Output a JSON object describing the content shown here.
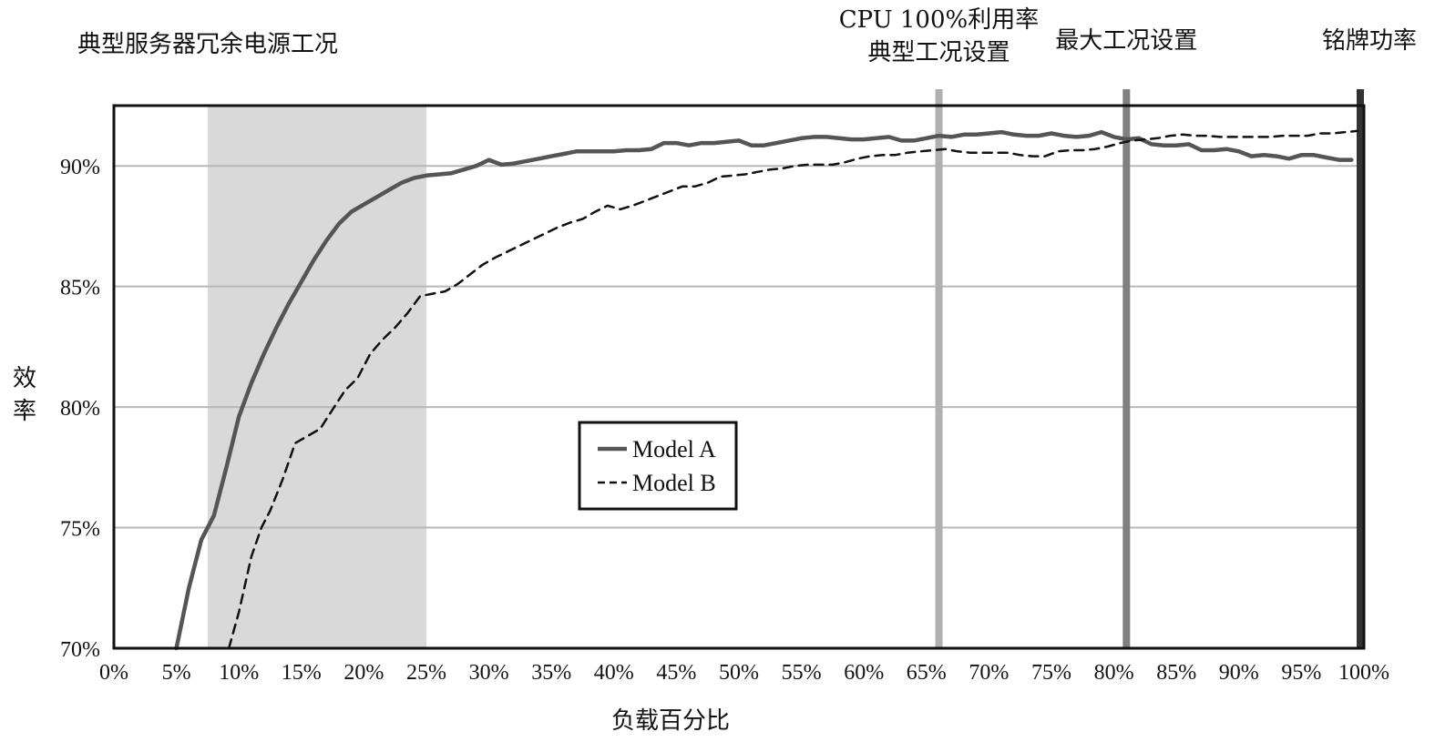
{
  "chart_data": {
    "type": "line",
    "xlabel": "负载百分比",
    "ylabel": "效率",
    "xlim": [
      0,
      100
    ],
    "ylim": [
      70,
      92.5
    ],
    "x_ticks": [
      0,
      5,
      10,
      15,
      20,
      25,
      30,
      35,
      40,
      45,
      50,
      55,
      60,
      65,
      70,
      75,
      80,
      85,
      90,
      95,
      100
    ],
    "x_tick_labels": [
      "0%",
      "5%",
      "10%",
      "15%",
      "20%",
      "25%",
      "30%",
      "35%",
      "40%",
      "45%",
      "50%",
      "55%",
      "60%",
      "65%",
      "70%",
      "75%",
      "80%",
      "85%",
      "90%",
      "95%",
      "100%"
    ],
    "y_ticks": [
      70,
      75,
      80,
      85,
      90
    ],
    "y_tick_labels": [
      "70%",
      "75%",
      "80%",
      "85%",
      "90%"
    ],
    "grid": "horizontal",
    "legend_position": "center",
    "regions": [
      {
        "label": "典型服务器冗余电源工况",
        "x_start": 7.5,
        "x_end": 25,
        "color": "#d9d9d9"
      }
    ],
    "vertical_markers": [
      {
        "label_lines": [
          "CPU 100%利用率",
          "典型工况设置"
        ],
        "x": 66,
        "color": "#b0b0b0"
      },
      {
        "label_lines": [
          "最大工况设置"
        ],
        "x": 81,
        "color": "#808080"
      },
      {
        "label_lines": [
          "铭牌功率"
        ],
        "x": 100,
        "color": "#333333"
      }
    ],
    "series": [
      {
        "name": "Model A",
        "style": "solid",
        "color": "#555555",
        "points": [
          [
            5,
            70
          ],
          [
            6,
            72.5
          ],
          [
            7,
            74.5
          ],
          [
            8,
            75.5
          ],
          [
            9,
            77.5
          ],
          [
            10,
            79.6
          ],
          [
            11,
            81
          ],
          [
            12,
            82.2
          ],
          [
            13,
            83.3
          ],
          [
            14,
            84.3
          ],
          [
            15,
            85.2
          ],
          [
            16,
            86.1
          ],
          [
            17,
            86.9
          ],
          [
            18,
            87.6
          ],
          [
            19,
            88.1
          ],
          [
            20,
            88.4
          ],
          [
            21,
            88.7
          ],
          [
            22,
            89
          ],
          [
            23,
            89.3
          ],
          [
            24,
            89.5
          ],
          [
            25,
            89.6
          ],
          [
            26,
            89.65
          ],
          [
            27,
            89.7
          ],
          [
            28,
            89.85
          ],
          [
            29,
            90
          ],
          [
            30,
            90.25
          ],
          [
            31,
            90.05
          ],
          [
            32,
            90.1
          ],
          [
            33,
            90.2
          ],
          [
            34,
            90.3
          ],
          [
            35,
            90.4
          ],
          [
            36,
            90.5
          ],
          [
            37,
            90.6
          ],
          [
            38,
            90.6
          ],
          [
            39,
            90.6
          ],
          [
            40,
            90.6
          ],
          [
            41,
            90.65
          ],
          [
            42,
            90.65
          ],
          [
            43,
            90.7
          ],
          [
            44,
            90.95
          ],
          [
            45,
            90.95
          ],
          [
            46,
            90.85
          ],
          [
            47,
            90.95
          ],
          [
            48,
            90.95
          ],
          [
            49,
            91
          ],
          [
            50,
            91.05
          ],
          [
            51,
            90.85
          ],
          [
            52,
            90.85
          ],
          [
            53,
            90.95
          ],
          [
            54,
            91.05
          ],
          [
            55,
            91.15
          ],
          [
            56,
            91.2
          ],
          [
            57,
            91.2
          ],
          [
            58,
            91.15
          ],
          [
            59,
            91.1
          ],
          [
            60,
            91.1
          ],
          [
            61,
            91.15
          ],
          [
            62,
            91.2
          ],
          [
            63,
            91.05
          ],
          [
            64,
            91.05
          ],
          [
            65,
            91.15
          ],
          [
            66,
            91.25
          ],
          [
            67,
            91.2
          ],
          [
            68,
            91.3
          ],
          [
            69,
            91.3
          ],
          [
            70,
            91.35
          ],
          [
            71,
            91.4
          ],
          [
            72,
            91.3
          ],
          [
            73,
            91.25
          ],
          [
            74,
            91.25
          ],
          [
            75,
            91.35
          ],
          [
            76,
            91.25
          ],
          [
            77,
            91.2
          ],
          [
            78,
            91.25
          ],
          [
            79,
            91.4
          ],
          [
            80,
            91.2
          ],
          [
            81,
            91.1
          ],
          [
            82,
            91.15
          ],
          [
            83,
            90.9
          ],
          [
            84,
            90.85
          ],
          [
            85,
            90.85
          ],
          [
            86,
            90.9
          ],
          [
            87,
            90.65
          ],
          [
            88,
            90.65
          ],
          [
            89,
            90.7
          ],
          [
            90,
            90.6
          ],
          [
            91,
            90.4
          ],
          [
            92,
            90.45
          ],
          [
            93,
            90.4
          ],
          [
            94,
            90.3
          ],
          [
            95,
            90.45
          ],
          [
            96,
            90.45
          ],
          [
            97,
            90.35
          ],
          [
            98,
            90.25
          ],
          [
            99,
            90.25
          ]
        ]
      },
      {
        "name": "Model B",
        "style": "dashed",
        "color": "#111111",
        "points": [
          [
            9.2,
            70
          ],
          [
            10,
            71.5
          ],
          [
            11,
            73.8
          ],
          [
            11.8,
            75
          ],
          [
            12.5,
            75.7
          ],
          [
            13.5,
            77
          ],
          [
            14.5,
            78.5
          ],
          [
            15.5,
            78.8
          ],
          [
            16.5,
            79.1
          ],
          [
            17.5,
            79.9
          ],
          [
            18.5,
            80.7
          ],
          [
            19.5,
            81.2
          ],
          [
            20.5,
            82.2
          ],
          [
            21.5,
            82.8
          ],
          [
            22.5,
            83.3
          ],
          [
            23.5,
            83.9
          ],
          [
            24.5,
            84.6
          ],
          [
            25.5,
            84.7
          ],
          [
            26.5,
            84.8
          ],
          [
            27.5,
            85.1
          ],
          [
            28.5,
            85.5
          ],
          [
            29.5,
            85.9
          ],
          [
            30.5,
            86.2
          ],
          [
            31.5,
            86.45
          ],
          [
            32.5,
            86.7
          ],
          [
            33.5,
            86.95
          ],
          [
            34.5,
            87.2
          ],
          [
            35.5,
            87.45
          ],
          [
            36.5,
            87.65
          ],
          [
            37.5,
            87.8
          ],
          [
            38.5,
            88.1
          ],
          [
            39.5,
            88.35
          ],
          [
            40.5,
            88.2
          ],
          [
            41.5,
            88.35
          ],
          [
            42.5,
            88.55
          ],
          [
            43.5,
            88.75
          ],
          [
            44.5,
            88.95
          ],
          [
            45.5,
            89.15
          ],
          [
            46.5,
            89.15
          ],
          [
            47.5,
            89.3
          ],
          [
            48.5,
            89.55
          ],
          [
            49.5,
            89.6
          ],
          [
            50.5,
            89.65
          ],
          [
            51.5,
            89.75
          ],
          [
            52.5,
            89.85
          ],
          [
            53.5,
            89.9
          ],
          [
            54.5,
            90
          ],
          [
            55.5,
            90.05
          ],
          [
            56.5,
            90.05
          ],
          [
            57.5,
            90.05
          ],
          [
            58.5,
            90.15
          ],
          [
            59.5,
            90.3
          ],
          [
            60.5,
            90.4
          ],
          [
            61.5,
            90.45
          ],
          [
            62.5,
            90.45
          ],
          [
            63.5,
            90.55
          ],
          [
            64.5,
            90.6
          ],
          [
            65.5,
            90.65
          ],
          [
            66.5,
            90.7
          ],
          [
            67.5,
            90.6
          ],
          [
            68.5,
            90.55
          ],
          [
            69.5,
            90.55
          ],
          [
            70.5,
            90.55
          ],
          [
            71.5,
            90.55
          ],
          [
            72.5,
            90.45
          ],
          [
            73.5,
            90.4
          ],
          [
            74.5,
            90.4
          ],
          [
            75.5,
            90.6
          ],
          [
            76.5,
            90.65
          ],
          [
            77.5,
            90.65
          ],
          [
            78.5,
            90.7
          ],
          [
            79.5,
            90.8
          ],
          [
            80.5,
            90.95
          ],
          [
            81.5,
            91.05
          ],
          [
            82.5,
            91.1
          ],
          [
            83.5,
            91.15
          ],
          [
            84.5,
            91.25
          ],
          [
            85.5,
            91.3
          ],
          [
            86.5,
            91.25
          ],
          [
            87.5,
            91.25
          ],
          [
            88.5,
            91.2
          ],
          [
            89.5,
            91.2
          ],
          [
            90.5,
            91.2
          ],
          [
            91.5,
            91.2
          ],
          [
            92.5,
            91.2
          ],
          [
            93.5,
            91.25
          ],
          [
            94.5,
            91.25
          ],
          [
            95.5,
            91.25
          ],
          [
            96.5,
            91.35
          ],
          [
            97.5,
            91.35
          ],
          [
            98.5,
            91.4
          ],
          [
            99.5,
            91.45
          ]
        ]
      }
    ]
  }
}
